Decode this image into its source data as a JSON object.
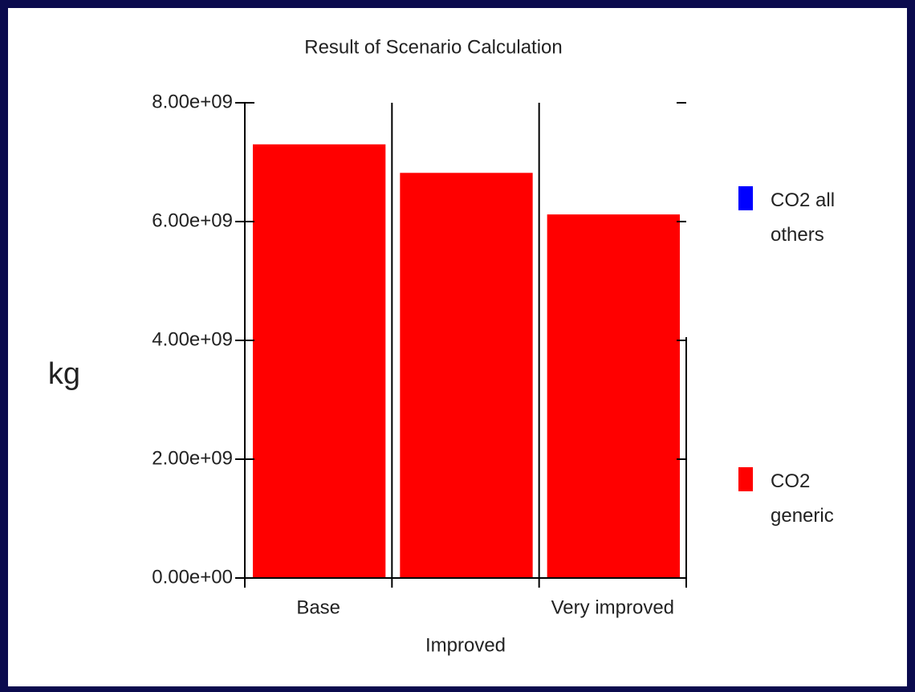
{
  "chart_data": {
    "type": "stacked_bar",
    "title": "Result of Scenario Calculation",
    "y_label": "kg",
    "categories": [
      "Base",
      "Improved",
      "Very improved"
    ],
    "series": [
      {
        "name": "CO2 all others",
        "color": "#0000ff",
        "values": [
          0,
          0,
          0
        ]
      },
      {
        "name": "CO2 generic",
        "color": "#ff0000",
        "values": [
          7300000000,
          6820000000,
          6120000000
        ]
      }
    ],
    "ylim": [
      0,
      8000000000
    ],
    "yticks": [
      {
        "value": 0,
        "label": "0.00e+00"
      },
      {
        "value": 2000000000,
        "label": "2.00e+09"
      },
      {
        "value": 4000000000,
        "label": "4.00e+09"
      },
      {
        "value": 6000000000,
        "label": "6.00e+09"
      },
      {
        "value": 8000000000,
        "label": "8.00e+09"
      }
    ]
  }
}
